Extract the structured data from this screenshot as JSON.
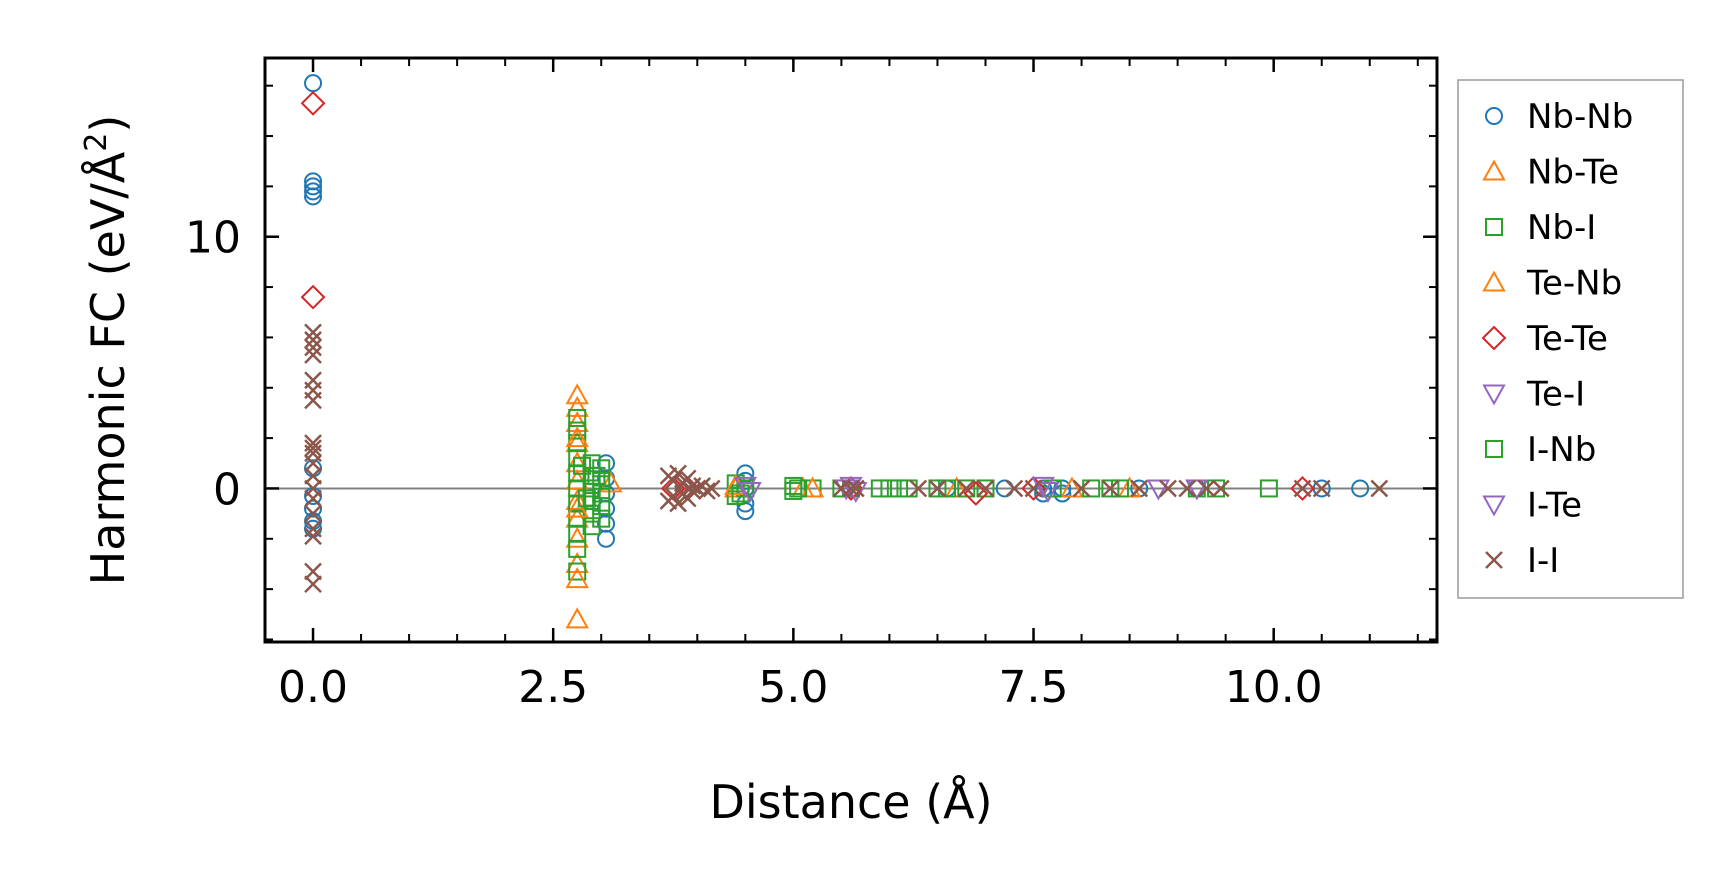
{
  "chart_data": {
    "type": "scatter",
    "title": "",
    "xlabel": "Distance (Å)",
    "ylabel": "Harmonic FC (eV/Å",
    "ylabel_sup": "2",
    "ylabel_end": ")",
    "xlim": [
      -0.5,
      11.7
    ],
    "ylim": [
      -6.1,
      17.1
    ],
    "xticks": [
      0.0,
      2.5,
      5.0,
      7.5,
      10.0
    ],
    "xtick_labels": [
      "0.0",
      "2.5",
      "5.0",
      "7.5",
      "10.0"
    ],
    "yticks": [
      0,
      10
    ],
    "ytick_labels": [
      "0",
      "10"
    ],
    "x_minor_step": 0.5,
    "y_minor_step": 2,
    "hline_y": 0,
    "legend_position": "outside-right",
    "series": [
      {
        "name": "Nb-Nb",
        "marker": "circle",
        "color": "#1f77b4",
        "x": [
          0.0,
          0.0,
          0.0,
          0.0,
          0.0,
          0.0,
          0.0,
          0.0,
          0.0,
          0.0,
          3.05,
          3.05,
          3.05,
          3.05,
          3.05,
          3.05,
          4.5,
          4.5,
          4.5,
          4.5,
          4.5,
          6.6,
          7.2,
          7.6,
          7.6,
          7.8,
          7.8,
          8.6,
          9.2,
          10.5,
          10.9
        ],
        "y": [
          16.1,
          12.2,
          12.0,
          11.8,
          11.6,
          0.8,
          -0.3,
          -0.8,
          -1.3,
          -1.6,
          1.0,
          0.4,
          -0.2,
          -0.8,
          -1.4,
          -2.0,
          0.6,
          0.3,
          0.0,
          -0.6,
          -0.9,
          0.0,
          0.0,
          0.0,
          -0.2,
          0.0,
          -0.2,
          0.0,
          0.0,
          0.0,
          0.0
        ]
      },
      {
        "name": "Nb-Te",
        "marker": "triangle-up",
        "color": "#ff7f0e",
        "x": [
          2.75,
          2.75,
          2.75,
          2.75,
          2.75,
          2.75,
          2.75,
          2.75,
          2.75,
          2.75,
          2.75,
          3.1,
          4.4,
          5.1,
          6.7,
          7.9,
          8.5
        ],
        "y": [
          3.7,
          3.2,
          2.6,
          1.8,
          1.0,
          0.3,
          -0.5,
          -1.2,
          -2.0,
          -3.0,
          -5.2,
          0.2,
          0.0,
          0.0,
          0.0,
          0.0,
          0.0
        ]
      },
      {
        "name": "Nb-I",
        "marker": "square",
        "color": "#2ca02c",
        "x": [
          2.75,
          2.75,
          2.75,
          2.75,
          2.75,
          2.75,
          2.75,
          2.75,
          2.75,
          2.75,
          2.75,
          2.9,
          2.9,
          2.9,
          2.9,
          2.9,
          2.9,
          3.0,
          3.0,
          3.0,
          3.0,
          3.0,
          4.4,
          4.4,
          4.5,
          5.0,
          5.0,
          5.2,
          5.5,
          5.6,
          5.9,
          6.0,
          6.1,
          6.2,
          6.5,
          6.6,
          6.8,
          7.0,
          7.7,
          8.1,
          8.3,
          8.4,
          9.2,
          9.4,
          9.95
        ],
        "y": [
          2.8,
          2.3,
          1.8,
          1.2,
          0.6,
          0.0,
          -0.6,
          -1.2,
          -1.8,
          -2.4,
          -3.3,
          1.0,
          0.5,
          0.0,
          -0.5,
          -1.0,
          -1.5,
          0.8,
          0.3,
          -0.2,
          -0.7,
          -1.2,
          0.2,
          -0.3,
          0.0,
          0.1,
          -0.1,
          0.0,
          0.0,
          0.0,
          0.0,
          0.0,
          0.0,
          0.0,
          0.0,
          0.0,
          0.0,
          0.0,
          0.0,
          0.0,
          0.0,
          0.0,
          0.0,
          0.0,
          0.0
        ]
      },
      {
        "name": "Te-Nb",
        "marker": "triangle-up",
        "color": "#ff7f0e",
        "x": [
          2.75,
          2.75,
          2.75,
          4.4,
          5.2
        ],
        "y": [
          2.0,
          -0.8,
          -3.6,
          0.1,
          0.0
        ]
      },
      {
        "name": "Te-Te",
        "marker": "diamond",
        "color": "#d62728",
        "x": [
          0.0,
          0.0,
          3.75,
          3.9,
          5.6,
          6.9,
          7.5,
          10.3
        ],
        "y": [
          15.3,
          7.6,
          0.0,
          0.0,
          0.0,
          -0.2,
          0.0,
          0.0
        ]
      },
      {
        "name": "Te-I",
        "marker": "triangle-down",
        "color": "#9467bd",
        "x": [
          4.5,
          5.6,
          5.65,
          7.6,
          8.8,
          9.2
        ],
        "y": [
          0.1,
          0.1,
          -0.1,
          0.1,
          0.0,
          0.0
        ]
      },
      {
        "name": "I-Nb",
        "marker": "square",
        "color": "#2ca02c",
        "x": [
          2.8,
          2.85,
          2.95,
          4.45,
          5.05
        ],
        "y": [
          0.9,
          -0.4,
          0.5,
          -0.2,
          0.0
        ]
      },
      {
        "name": "I-Te",
        "marker": "triangle-down",
        "color": "#9467bd",
        "x": [
          4.55,
          5.55,
          7.65
        ],
        "y": [
          -0.1,
          0.0,
          -0.1
        ]
      },
      {
        "name": "I-I",
        "marker": "x",
        "color": "#8c564b",
        "x": [
          0.0,
          0.0,
          0.0,
          0.0,
          0.0,
          0.0,
          0.0,
          0.0,
          0.0,
          0.0,
          0.0,
          0.0,
          0.0,
          0.0,
          0.0,
          0.0,
          0.0,
          0.0,
          0.0,
          3.7,
          3.7,
          3.75,
          3.75,
          3.8,
          3.8,
          3.85,
          3.85,
          3.9,
          3.9,
          3.95,
          3.95,
          4.0,
          4.05,
          4.1,
          4.15,
          5.5,
          5.6,
          5.65,
          6.3,
          6.5,
          6.8,
          7.0,
          7.3,
          7.5,
          8.0,
          8.3,
          8.6,
          8.9,
          9.1,
          9.3,
          9.45,
          10.3,
          10.5,
          11.1
        ],
        "y": [
          6.2,
          5.9,
          5.6,
          5.3,
          4.3,
          3.9,
          3.5,
          1.8,
          1.6,
          1.4,
          1.0,
          0.5,
          0.0,
          -0.4,
          -1.0,
          -1.6,
          -1.9,
          -3.3,
          -3.8,
          0.5,
          -0.5,
          0.3,
          -0.3,
          0.6,
          -0.6,
          0.2,
          -0.2,
          0.4,
          -0.4,
          0.1,
          -0.1,
          0.0,
          0.1,
          -0.1,
          0.0,
          0.0,
          0.0,
          0.0,
          0.0,
          0.0,
          0.0,
          0.0,
          0.0,
          0.0,
          0.0,
          0.0,
          0.0,
          0.0,
          0.0,
          0.0,
          0.0,
          0.0,
          0.0,
          0.0
        ]
      }
    ]
  }
}
